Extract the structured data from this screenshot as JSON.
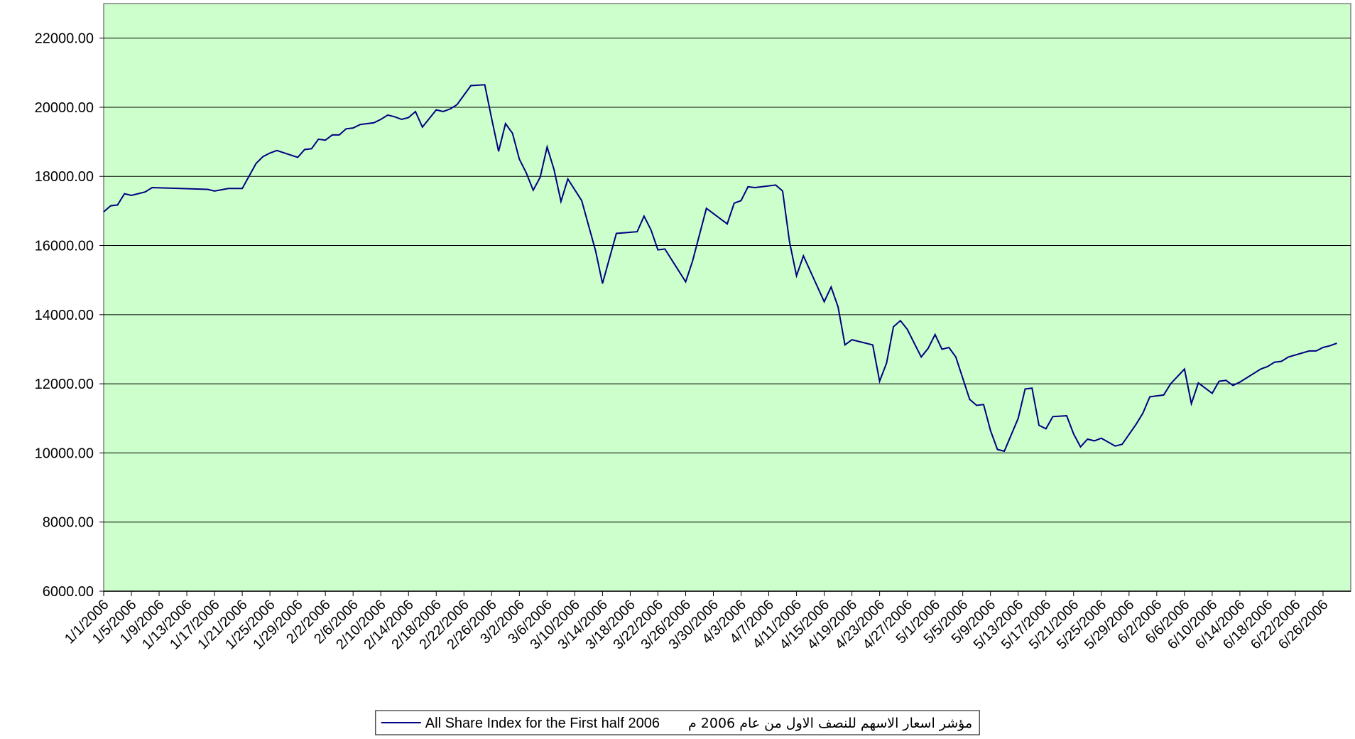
{
  "chart_data": {
    "type": "line",
    "x": [
      "1/1/2006",
      "1/2/2006",
      "1/3/2006",
      "1/4/2006",
      "1/5/2006",
      "1/7/2006",
      "1/8/2006",
      "1/16/2006",
      "1/17/2006",
      "1/19/2006",
      "1/21/2006",
      "1/23/2006",
      "1/24/2006",
      "1/25/2006",
      "1/26/2006",
      "1/29/2006",
      "1/30/2006",
      "1/31/2006",
      "2/1/2006",
      "2/2/2006",
      "2/3/2006",
      "2/4/2006",
      "2/5/2006",
      "2/6/2006",
      "2/7/2006",
      "2/9/2006",
      "2/10/2006",
      "2/11/2006",
      "2/12/2006",
      "2/13/2006",
      "2/14/2006",
      "2/15/2006",
      "2/16/2006",
      "2/18/2006",
      "2/19/2006",
      "2/20/2006",
      "2/21/2006",
      "2/22/2006",
      "2/23/2006",
      "2/25/2006",
      "2/26/2006",
      "2/27/2006",
      "2/28/2006",
      "3/1/2006",
      "3/2/2006",
      "3/3/2006",
      "3/4/2006",
      "3/5/2006",
      "3/6/2006",
      "3/7/2006",
      "3/8/2006",
      "3/9/2006",
      "3/11/2006",
      "3/13/2006",
      "3/14/2006",
      "3/16/2006",
      "3/19/2006",
      "3/20/2006",
      "3/21/2006",
      "3/22/2006",
      "3/23/2006",
      "3/26/2006",
      "3/27/2006",
      "3/29/2006",
      "4/1/2006",
      "4/2/2006",
      "4/3/2006",
      "4/4/2006",
      "4/5/2006",
      "4/8/2006",
      "4/9/2006",
      "4/10/2006",
      "4/11/2006",
      "4/12/2006",
      "4/15/2006",
      "4/16/2006",
      "4/17/2006",
      "4/18/2006",
      "4/19/2006",
      "4/22/2006",
      "4/23/2006",
      "4/24/2006",
      "4/25/2006",
      "4/26/2006",
      "4/27/2006",
      "4/29/2006",
      "4/30/2006",
      "5/1/2006",
      "5/2/2006",
      "5/3/2006",
      "5/4/2006",
      "5/6/2006",
      "5/7/2006",
      "5/8/2006",
      "5/9/2006",
      "5/10/2006",
      "5/11/2006",
      "5/13/2006",
      "5/14/2006",
      "5/15/2006",
      "5/16/2006",
      "5/17/2006",
      "5/18/2006",
      "5/20/2006",
      "5/21/2006",
      "5/22/2006",
      "5/23/2006",
      "5/24/2006",
      "5/25/2006",
      "5/27/2006",
      "5/28/2006",
      "5/30/2006",
      "5/31/2006",
      "6/1/2006",
      "6/3/2006",
      "6/4/2006",
      "6/6/2006",
      "6/7/2006",
      "6/8/2006",
      "6/10/2006",
      "6/11/2006",
      "6/12/2006",
      "6/13/2006",
      "6/14/2006",
      "6/17/2006",
      "6/18/2006",
      "6/19/2006",
      "6/20/2006",
      "6/21/2006",
      "6/24/2006",
      "6/25/2006",
      "6/26/2006",
      "6/27/2006",
      "6/28/2006"
    ],
    "series": [
      {
        "name": "All Share Index for the First half 2006",
        "color": "#000080",
        "values": [
          16975,
          17150,
          17175,
          17500,
          17450,
          17550,
          17675,
          17625,
          17575,
          17650,
          17650,
          18375,
          18575,
          18675,
          18750,
          18550,
          18775,
          18800,
          19075,
          19050,
          19200,
          19200,
          19375,
          19400,
          19500,
          19550,
          19650,
          19775,
          19725,
          19650,
          19700,
          19875,
          19425,
          19925,
          19875,
          19950,
          20075,
          20350,
          20625,
          20650,
          19675,
          18725,
          19525,
          19250,
          18500,
          18100,
          17600,
          17975,
          18850,
          18200,
          17275,
          17925,
          17300,
          15850,
          14900,
          16350,
          16400,
          16850,
          16450,
          15875,
          15900,
          14950,
          15550,
          17075,
          16625,
          17225,
          17300,
          17700,
          17675,
          17750,
          17575,
          16100,
          15125,
          15700,
          14375,
          14800,
          14225,
          13125,
          13275,
          13125,
          12075,
          12600,
          13650,
          13825,
          13575,
          12775,
          13025,
          13425,
          13000,
          13050,
          12775,
          11550,
          11375,
          11400,
          10650,
          10100,
          10050,
          11000,
          11850,
          11875,
          10800,
          10700,
          11050,
          11075,
          10550,
          10175,
          10400,
          10350,
          10425,
          10200,
          10250,
          10825,
          11150,
          11625,
          11675,
          12000,
          12425,
          11425,
          12025,
          11725,
          12075,
          12100,
          11950,
          12050,
          12425,
          12500,
          12625,
          12650,
          12775,
          12950,
          12950,
          13050,
          13100,
          13175
        ]
      }
    ],
    "legend_note": "مؤشر اسعار الاسهم للنصف الاول من عام 2006 م",
    "xlim": [
      "1/1/2006",
      "6/30/2006"
    ],
    "xticks": [
      "1/1/2006",
      "1/5/2006",
      "1/9/2006",
      "1/13/2006",
      "1/17/2006",
      "1/21/2006",
      "1/25/2006",
      "1/29/2006",
      "2/2/2006",
      "2/6/2006",
      "2/10/2006",
      "2/14/2006",
      "2/18/2006",
      "2/22/2006",
      "2/26/2006",
      "3/2/2006",
      "3/6/2006",
      "3/10/2006",
      "3/14/2006",
      "3/18/2006",
      "3/22/2006",
      "3/26/2006",
      "3/30/2006",
      "4/3/2006",
      "4/7/2006",
      "4/11/2006",
      "4/15/2006",
      "4/19/2006",
      "4/23/2006",
      "4/27/2006",
      "5/1/2006",
      "5/5/2006",
      "5/9/2006",
      "5/13/2006",
      "5/17/2006",
      "5/21/2006",
      "5/25/2006",
      "5/29/2006",
      "6/2/2006",
      "6/6/2006",
      "6/10/2006",
      "6/14/2006",
      "6/18/2006",
      "6/22/2006",
      "6/26/2006"
    ],
    "ylim": [
      6000,
      23000
    ],
    "yticks": [
      {
        "value": 6000,
        "label": "6000.00"
      },
      {
        "value": 8000,
        "label": "8000.00"
      },
      {
        "value": 10000,
        "label": "10000.00"
      },
      {
        "value": 12000,
        "label": "12000.00"
      },
      {
        "value": 14000,
        "label": "14000.00"
      },
      {
        "value": 16000,
        "label": "16000.00"
      },
      {
        "value": 18000,
        "label": "18000.00"
      },
      {
        "value": 20000,
        "label": "20000.00"
      },
      {
        "value": 22000,
        "label": "22000.00"
      }
    ],
    "grid": true,
    "plot_background": "#ccffcc",
    "legend": "bottom"
  }
}
